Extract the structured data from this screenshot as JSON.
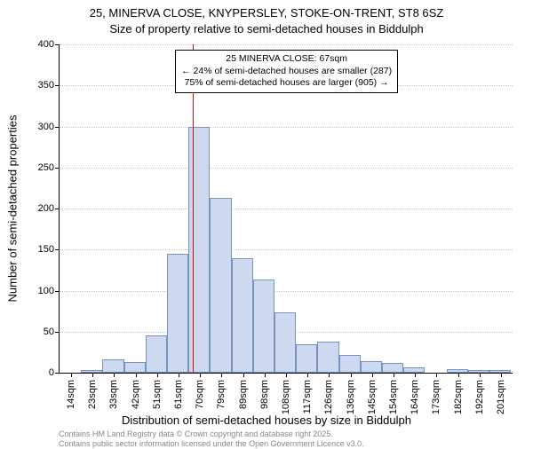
{
  "title_line1": "25, MINERVA CLOSE, KNYPERSLEY, STOKE-ON-TRENT, ST8 6SZ",
  "title_line2": "Size of property relative to semi-detached houses in Biddulph",
  "ylabel": "Number of semi-detached properties",
  "xlabel": "Distribution of semi-detached houses by size in Biddulph",
  "footer_line1": "Contains HM Land Registry data © Crown copyright and database right 2025.",
  "footer_line2": "Contains public sector information licensed under the Open Government Licence v3.0.",
  "annotation": {
    "line1": "25 MINERVA CLOSE: 67sqm",
    "line2": "← 24% of semi-detached houses are smaller (287)",
    "line3": "75% of semi-detached houses are larger (905) →"
  },
  "marker": {
    "x_value": 67,
    "color": "#ff0000",
    "width": 1.5
  },
  "chart": {
    "type": "histogram",
    "background_color": "#ffffff",
    "bar_fill": "#cdd9ef",
    "bar_border": "#7892c2",
    "grid_color": "#c8c8c8",
    "axis_color": "#000000",
    "font_family": "Arial",
    "x_min": 9,
    "x_max": 206,
    "y_min": 0,
    "y_max": 400,
    "y_tick_step": 50,
    "x_tick_start": 14,
    "x_tick_step": 9.35,
    "x_tick_count": 21,
    "x_tick_unit": "sqm",
    "bin_start": 9,
    "bin_width": 9.35,
    "values": [
      0,
      3,
      16,
      13,
      45,
      145,
      300,
      213,
      140,
      113,
      73,
      35,
      38,
      22,
      14,
      12,
      6,
      0,
      4,
      3,
      3
    ]
  }
}
